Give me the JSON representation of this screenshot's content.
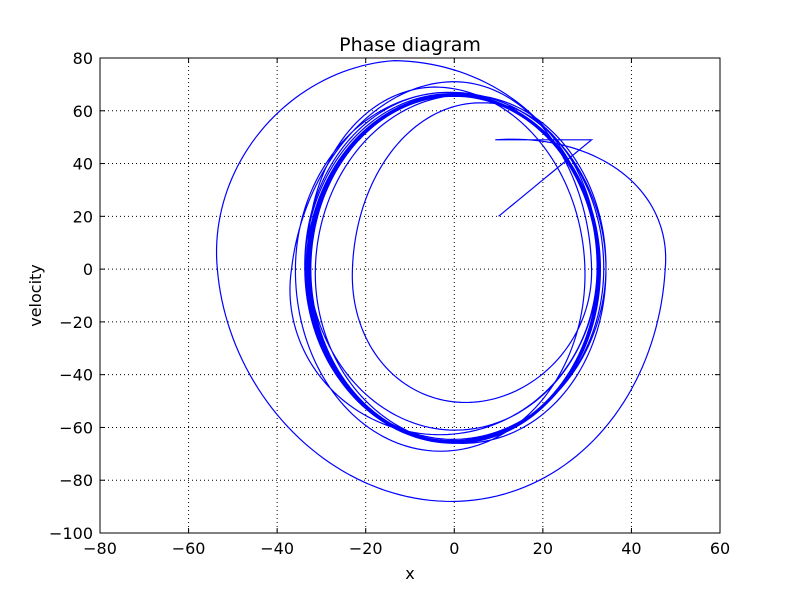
{
  "chart_data": {
    "type": "line",
    "title": "Phase diagram",
    "xlabel": "x",
    "ylabel": "velocity",
    "xlim": [
      -80,
      60
    ],
    "ylim": [
      -100,
      80
    ],
    "xticks": [
      -80,
      -60,
      -40,
      -20,
      0,
      20,
      40,
      60
    ],
    "yticks": [
      -100,
      -80,
      -60,
      -40,
      -20,
      0,
      20,
      40,
      60,
      80
    ],
    "xtick_labels": [
      "−80",
      "−60",
      "−40",
      "−20",
      "0",
      "20",
      "40",
      "60"
    ],
    "ytick_labels": [
      "−100",
      "−80",
      "−60",
      "−40",
      "−20",
      "0",
      "20",
      "40",
      "60",
      "80"
    ],
    "grid": true,
    "line_color": "#0000ff",
    "series": [
      {
        "start": [
          10,
          20
        ],
        "loops": [
          {
            "center": 9.25,
            "radius_x": 43.25,
            "top": 49,
            "bottom": -96
          },
          {
            "center": -13.5,
            "radius_x": 46.5,
            "top": 79,
            "bottom": -80
          },
          {
            "center": 0.5,
            "radius_x": 29.5,
            "top": 71,
            "bottom": -45
          },
          {
            "center": 6.5,
            "radius_x": 27.5,
            "top": 63,
            "bottom": -56
          },
          {
            "center": -4.5,
            "radius_x": 32.5,
            "top": 69,
            "bottom": -66
          },
          {
            "center": -0.75,
            "radius_x": 34.75,
            "top": 67,
            "bottom": -72
          },
          {
            "center": 2.5,
            "radius_x": 32.5,
            "top": 66,
            "bottom": -60
          },
          {
            "center": -1.5,
            "radius_x": 33.5,
            "top": 67,
            "bottom": -69
          },
          {
            "center": 0.5,
            "radius_x": 33.5,
            "top": 66.5,
            "bottom": -63
          },
          {
            "center": -0.5,
            "radius_x": 33.5,
            "top": 66.5,
            "bottom": -67
          },
          {
            "center": 0.0,
            "radius_x": 33.0,
            "top": 66.2,
            "bottom": -64.5
          },
          {
            "center": 0.0,
            "radius_x": 33.0,
            "top": 66.0,
            "bottom": -66
          },
          {
            "center": 0.0,
            "radius_x": 32.8,
            "top": 66.0,
            "bottom": -65
          },
          {
            "center": 0.0,
            "radius_x": 32.6,
            "top": 65.8,
            "bottom": -65.5
          },
          {
            "center": 0.0,
            "radius_x": 32.5,
            "top": 65.6,
            "bottom": -65.2
          },
          {
            "center": 0.0,
            "radius_x": 32.4,
            "top": 65.5,
            "bottom": -65.3
          }
        ]
      }
    ]
  }
}
